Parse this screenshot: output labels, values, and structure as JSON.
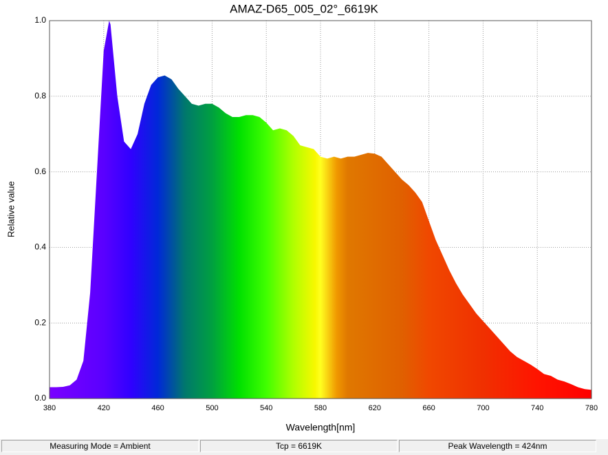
{
  "chart_data": {
    "type": "area",
    "title": "AMAZ-D65_005_02°_6619K",
    "x_label": "Wavelength[nm]",
    "y_label": "Relative value",
    "x": [
      380,
      385,
      390,
      395,
      400,
      405,
      410,
      415,
      420,
      424,
      425,
      430,
      435,
      440,
      445,
      450,
      455,
      460,
      465,
      470,
      475,
      480,
      485,
      490,
      495,
      500,
      505,
      510,
      515,
      520,
      525,
      530,
      535,
      540,
      545,
      550,
      555,
      560,
      565,
      570,
      575,
      580,
      585,
      590,
      595,
      600,
      605,
      610,
      615,
      620,
      625,
      630,
      635,
      640,
      645,
      650,
      655,
      660,
      665,
      670,
      675,
      680,
      685,
      690,
      695,
      700,
      705,
      710,
      715,
      720,
      725,
      730,
      735,
      740,
      745,
      750,
      755,
      760,
      765,
      770,
      775,
      780
    ],
    "values": [
      0.03,
      0.03,
      0.031,
      0.035,
      0.05,
      0.1,
      0.28,
      0.6,
      0.92,
      1.0,
      0.99,
      0.8,
      0.68,
      0.66,
      0.7,
      0.78,
      0.83,
      0.85,
      0.855,
      0.845,
      0.82,
      0.8,
      0.78,
      0.775,
      0.78,
      0.78,
      0.77,
      0.755,
      0.745,
      0.745,
      0.75,
      0.75,
      0.745,
      0.73,
      0.71,
      0.715,
      0.71,
      0.695,
      0.67,
      0.665,
      0.66,
      0.64,
      0.635,
      0.64,
      0.635,
      0.64,
      0.64,
      0.645,
      0.65,
      0.648,
      0.64,
      0.62,
      0.6,
      0.58,
      0.565,
      0.545,
      0.52,
      0.47,
      0.42,
      0.38,
      0.34,
      0.305,
      0.275,
      0.25,
      0.225,
      0.205,
      0.185,
      0.165,
      0.145,
      0.125,
      0.11,
      0.1,
      0.09,
      0.078,
      0.065,
      0.06,
      0.05,
      0.045,
      0.038,
      0.03,
      0.025,
      0.023
    ],
    "xlim": [
      380,
      780
    ],
    "xticks": [
      380,
      420,
      460,
      500,
      540,
      580,
      620,
      660,
      700,
      740,
      780
    ],
    "ylim": [
      0,
      1
    ],
    "yticks": [
      {
        "value": 0,
        "label": "0.0"
      },
      {
        "value": 0.2,
        "label": "0.2"
      },
      {
        "value": 0.4,
        "label": "0.4"
      },
      {
        "value": 0.6,
        "label": "0.6"
      },
      {
        "value": 0.8,
        "label": "0.8"
      },
      {
        "value": 1,
        "label": "1.0"
      }
    ],
    "grid": true
  },
  "status": [
    "Measuring Mode = Ambient",
    "Tcp = 6619K",
    "Peak Wavelength = 424nm"
  ]
}
